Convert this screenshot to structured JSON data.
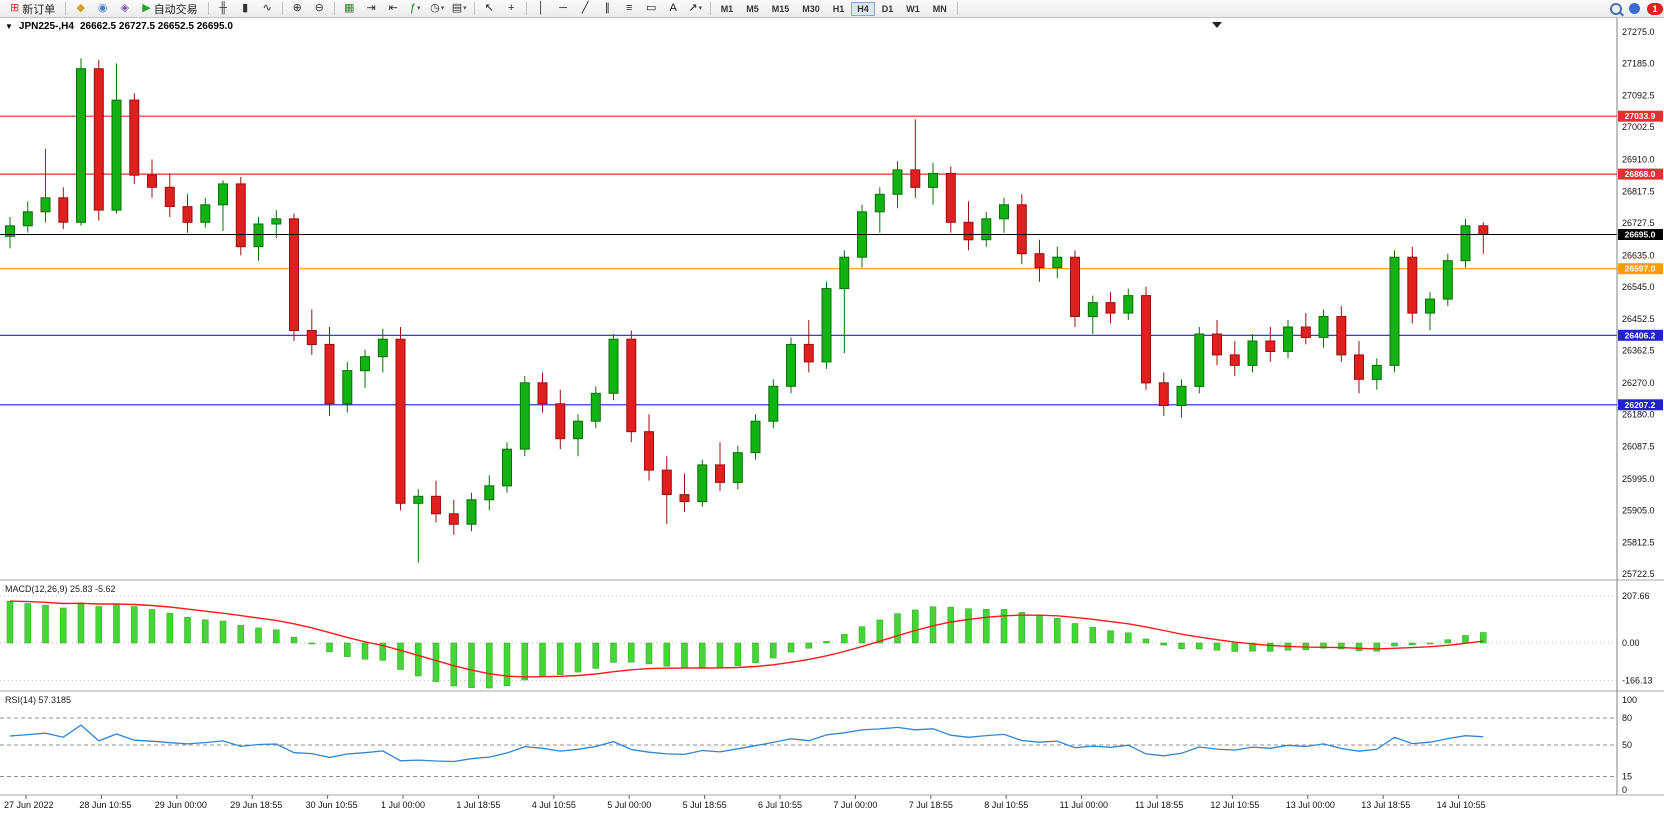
{
  "toolbar": {
    "dropdown_caret": "▾",
    "items": [
      {
        "t": "btn",
        "name": "new-order-button",
        "glyph": "⊞",
        "gc": "#c23a3a",
        "label": "新订单"
      },
      {
        "t": "sep"
      },
      {
        "t": "icon",
        "name": "metaeditor-icon",
        "glyph": "◆",
        "gc": "#d4a017"
      },
      {
        "t": "icon",
        "name": "market-watch-icon",
        "glyph": "◉",
        "gc": "#4a7fd4"
      },
      {
        "t": "icon",
        "name": "navigator-icon",
        "glyph": "◈",
        "gc": "#7a55aa"
      },
      {
        "t": "btn",
        "name": "autotrading-button",
        "glyph": "▶",
        "gc": "#27a527",
        "label": "自动交易"
      },
      {
        "t": "sep"
      },
      {
        "t": "icon",
        "name": "bar-chart-icon",
        "glyph": "╫",
        "gc": "#333333"
      },
      {
        "t": "icon",
        "name": "candlestick-chart-icon",
        "glyph": "▮",
        "gc": "#333333"
      },
      {
        "t": "icon",
        "name": "line-chart-icon",
        "glyph": "∿",
        "gc": "#333333"
      },
      {
        "t": "sep"
      },
      {
        "t": "icon",
        "name": "zoom-in-icon",
        "glyph": "⊕",
        "gc": "#333333"
      },
      {
        "t": "icon",
        "name": "zoom-out-icon",
        "glyph": "⊖",
        "gc": "#333333"
      },
      {
        "t": "sep"
      },
      {
        "t": "icon",
        "name": "tile-windows-icon",
        "glyph": "▦",
        "gc": "#2d8a2d"
      },
      {
        "t": "icon",
        "name": "auto-scroll-icon",
        "glyph": "⇥",
        "gc": "#333333"
      },
      {
        "t": "icon",
        "name": "chart-shift-icon",
        "glyph": "⇤",
        "gc": "#333333"
      },
      {
        "t": "icon",
        "name": "indicators-icon",
        "glyph": "ƒ",
        "gc": "#1f7a1f",
        "dd": true
      },
      {
        "t": "icon",
        "name": "periods-icon",
        "glyph": "◷",
        "gc": "#333333",
        "dd": true
      },
      {
        "t": "icon",
        "name": "templates-icon",
        "glyph": "▤",
        "gc": "#333333",
        "dd": true
      },
      {
        "t": "sep"
      },
      {
        "t": "icon",
        "name": "cursor-icon",
        "glyph": "↖",
        "gc": "#222222"
      },
      {
        "t": "icon",
        "name": "crosshair-icon",
        "glyph": "+",
        "gc": "#222222"
      },
      {
        "t": "sep"
      },
      {
        "t": "icon",
        "name": "vertical-line-icon",
        "glyph": "│",
        "gc": "#222222"
      },
      {
        "t": "icon",
        "name": "horizontal-line-icon",
        "glyph": "─",
        "gc": "#222222"
      },
      {
        "t": "icon",
        "name": "trendline-icon",
        "glyph": "╱",
        "gc": "#222222"
      },
      {
        "t": "icon",
        "name": "channel-icon",
        "glyph": "∥",
        "gc": "#222222"
      },
      {
        "t": "icon",
        "name": "fibonacci-icon",
        "glyph": "≡",
        "gc": "#222222"
      },
      {
        "t": "icon",
        "name": "shapes-icon",
        "glyph": "▭",
        "gc": "#222222"
      },
      {
        "t": "icon",
        "name": "text-icon",
        "glyph": "A",
        "gc": "#222222"
      },
      {
        "t": "icon",
        "name": "arrows-icon",
        "glyph": "↗",
        "gc": "#222222",
        "dd": true
      },
      {
        "t": "sep"
      },
      {
        "t": "tfgroup"
      },
      {
        "t": "sep"
      }
    ],
    "timeframes": [
      "M1",
      "M5",
      "M15",
      "M30",
      "H1",
      "H4",
      "D1",
      "W1",
      "MN"
    ],
    "active_timeframe": "H4",
    "notification_count": "1"
  },
  "chart": {
    "one_click_arrow": "▼",
    "symbol_period": "JPN225-,H4",
    "ohlc": "26662.5 26727.5 26652.5 26695.0"
  },
  "indicators": {
    "macd_label": "MACD(12,26,9) 25.83 -5.62",
    "rsi_label": "RSI(14) 57.3185"
  },
  "colors": {
    "up": "#12b212",
    "up_border": "#0a700a",
    "down": "#e01f1f",
    "down_border": "#991010",
    "macd_hist": "#46d536",
    "macd_hist_border": "#2aa51e",
    "macd_signal": "#ff1a1a",
    "rsi": "#2f86d2"
  },
  "chart_data": {
    "type": "candlestick",
    "symbol": "JPN225-",
    "timeframe": "H4",
    "ohlc_order": [
      "open",
      "high",
      "low",
      "close"
    ],
    "candles": [
      [
        26690,
        26745,
        26655,
        26720
      ],
      [
        26720,
        26790,
        26700,
        26760
      ],
      [
        26760,
        26940,
        26730,
        26800
      ],
      [
        26800,
        26830,
        26710,
        26730
      ],
      [
        26730,
        27200,
        26720,
        27170
      ],
      [
        27170,
        27195,
        26735,
        26765
      ],
      [
        26765,
        27185,
        26755,
        27080
      ],
      [
        27080,
        27100,
        26840,
        26865
      ],
      [
        26865,
        26910,
        26800,
        26830
      ],
      [
        26830,
        26870,
        26745,
        26775
      ],
      [
        26775,
        26810,
        26700,
        26730
      ],
      [
        26730,
        26800,
        26715,
        26780
      ],
      [
        26780,
        26850,
        26705,
        26840
      ],
      [
        26840,
        26860,
        26635,
        26660
      ],
      [
        26660,
        26745,
        26620,
        26725
      ],
      [
        26725,
        26765,
        26685,
        26740
      ],
      [
        26740,
        26755,
        26390,
        26420
      ],
      [
        26420,
        26480,
        26350,
        26380
      ],
      [
        26380,
        26430,
        26175,
        26210
      ],
      [
        26210,
        26330,
        26185,
        26305
      ],
      [
        26305,
        26365,
        26255,
        26345
      ],
      [
        26345,
        26425,
        26300,
        26395
      ],
      [
        26395,
        26430,
        25905,
        25925
      ],
      [
        25925,
        25965,
        25755,
        25945
      ],
      [
        25945,
        25990,
        25870,
        25895
      ],
      [
        25895,
        25935,
        25835,
        25865
      ],
      [
        25865,
        25955,
        25845,
        25935
      ],
      [
        25935,
        26005,
        25905,
        25975
      ],
      [
        25975,
        26100,
        25955,
        26080
      ],
      [
        26080,
        26290,
        26060,
        26270
      ],
      [
        26270,
        26300,
        26185,
        26210
      ],
      [
        26210,
        26250,
        26080,
        26110
      ],
      [
        26110,
        26180,
        26060,
        26160
      ],
      [
        26160,
        26260,
        26140,
        26240
      ],
      [
        26240,
        26410,
        26220,
        26395
      ],
      [
        26395,
        26420,
        26100,
        26130
      ],
      [
        26130,
        26180,
        25990,
        26020
      ],
      [
        26020,
        26060,
        25865,
        25950
      ],
      [
        25950,
        26010,
        25900,
        25930
      ],
      [
        25930,
        26050,
        25915,
        26035
      ],
      [
        26035,
        26100,
        25960,
        25985
      ],
      [
        25985,
        26090,
        25965,
        26070
      ],
      [
        26070,
        26180,
        26050,
        26160
      ],
      [
        26160,
        26280,
        26140,
        26260
      ],
      [
        26260,
        26400,
        26240,
        26380
      ],
      [
        26380,
        26450,
        26300,
        26330
      ],
      [
        26330,
        26560,
        26310,
        26540
      ],
      [
        26540,
        26650,
        26355,
        26630
      ],
      [
        26630,
        26780,
        26600,
        26760
      ],
      [
        26760,
        26830,
        26700,
        26810
      ],
      [
        26810,
        26905,
        26770,
        26880
      ],
      [
        26880,
        27025,
        26800,
        26830
      ],
      [
        26830,
        26900,
        26780,
        26870
      ],
      [
        26870,
        26890,
        26700,
        26730
      ],
      [
        26730,
        26790,
        26650,
        26680
      ],
      [
        26680,
        26760,
        26660,
        26740
      ],
      [
        26740,
        26800,
        26700,
        26780
      ],
      [
        26780,
        26810,
        26610,
        26640
      ],
      [
        26640,
        26680,
        26560,
        26600
      ],
      [
        26600,
        26660,
        26570,
        26630
      ],
      [
        26630,
        26650,
        26430,
        26460
      ],
      [
        26460,
        26520,
        26410,
        26500
      ],
      [
        26500,
        26530,
        26440,
        26470
      ],
      [
        26470,
        26540,
        26450,
        26520
      ],
      [
        26520,
        26545,
        26250,
        26270
      ],
      [
        26270,
        26300,
        26175,
        26205
      ],
      [
        26205,
        26280,
        26170,
        26260
      ],
      [
        26260,
        26430,
        26240,
        26410
      ],
      [
        26410,
        26450,
        26320,
        26350
      ],
      [
        26350,
        26390,
        26290,
        26320
      ],
      [
        26320,
        26410,
        26300,
        26390
      ],
      [
        26390,
        26430,
        26330,
        26360
      ],
      [
        26360,
        26450,
        26340,
        26430
      ],
      [
        26430,
        26470,
        26380,
        26400
      ],
      [
        26400,
        26480,
        26370,
        26460
      ],
      [
        26460,
        26490,
        26330,
        26350
      ],
      [
        26350,
        26390,
        26240,
        26280
      ],
      [
        26280,
        26340,
        26250,
        26320
      ],
      [
        26320,
        26650,
        26300,
        26630
      ],
      [
        26630,
        26660,
        26440,
        26470
      ],
      [
        26470,
        26530,
        26420,
        26510
      ],
      [
        26510,
        26640,
        26490,
        26620
      ],
      [
        26620,
        26740,
        26600,
        26720
      ],
      [
        26720,
        26730,
        26640,
        26695
      ]
    ],
    "hlines": [
      {
        "price": 27033.9,
        "label": "27033.9",
        "color": "#e03030"
      },
      {
        "price": 26868.0,
        "label": "26868.0",
        "color": "#e03030"
      },
      {
        "price": 26695.0,
        "label": "26695.0",
        "color": "#000000",
        "current": true
      },
      {
        "price": 26597.0,
        "label": "26597.0",
        "color": "#ff9c00"
      },
      {
        "price": 26406.2,
        "label": "26406.2",
        "color": "#2222cc"
      },
      {
        "price": 26207.2,
        "label": "26207.2",
        "color": "#2222cc"
      }
    ],
    "price_axis_labels": [
      "27275.0",
      "27185.0",
      "27092.5",
      "27002.5",
      "26910.0",
      "26817.5",
      "26727.5",
      "26635.0",
      "26545.0",
      "26452.5",
      "26362.5",
      "26270.0",
      "26180.0",
      "26087.5",
      "25995.0",
      "25905.0",
      "25812.5",
      "25722.5"
    ],
    "time_labels": [
      "27 Jun 2022",
      "28 Jun 10:55",
      "29 Jun 00:00",
      "29 Jun 18:55",
      "30 Jun 10:55",
      "1 Jul 00:00",
      "1 Jul 18:55",
      "4 Jul 10:55",
      "5 Jul 00:00",
      "5 Jul 18:55",
      "6 Jul 10:55",
      "7 Jul 00:00",
      "7 Jul 18:55",
      "8 Jul 10:55",
      "11 Jul 00:00",
      "11 Jul 18:55",
      "12 Jul 10:55",
      "13 Jul 00:00",
      "13 Jul 18:55",
      "14 Jul 10:55"
    ],
    "macd": {
      "title": "MACD(12,26,9)",
      "value": 25.83,
      "signal_value": -5.62,
      "params": [
        12,
        26,
        9
      ],
      "axis_labels": [
        "207.66",
        "0.00",
        "-166.13"
      ]
    },
    "rsi": {
      "title": "RSI(14)",
      "value": 57.3185,
      "period": 14,
      "axis_labels": [
        "100",
        "80",
        "50",
        "15",
        "0"
      ],
      "levels": [
        80,
        50,
        15
      ]
    }
  }
}
